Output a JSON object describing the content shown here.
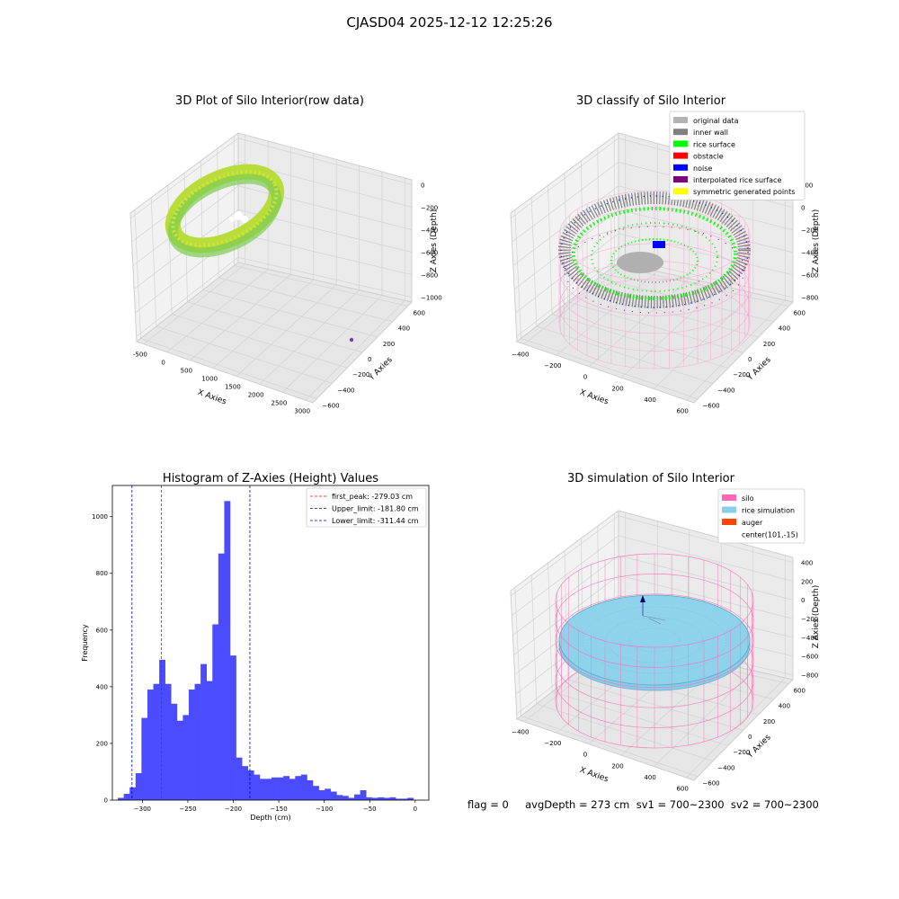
{
  "suptitle": "CJASD04 2025-12-12 12:25:26",
  "footer": "flag = 0     avgDepth = 273 cm  sv1 = 700~2300  sv2 = 700~2300",
  "colors": {
    "histogram_bar": "#4b4bff",
    "red_line": "#ff0000",
    "blue_line": "#0000cc",
    "original_data": "#b3b3b3",
    "inner_wall": "#808080",
    "rice_surface": "#00ff00",
    "obstacle": "#ff0000",
    "noise": "#0000ff",
    "interpolated_rice_surface": "#800080",
    "symmetric_generated_points": "#ffff00",
    "silo": "#ff69b4",
    "rice_simulation": "#87ceeb",
    "auger": "#ff4500"
  },
  "panels": {
    "raw": {
      "title": "3D Plot of Silo Interior(row data)",
      "xlabel": "X Axies",
      "ylabel": "Y Axies",
      "zlabel": "Z Axies (Depth)",
      "xticks": [
        "-500",
        "0",
        "500",
        "1000",
        "1500",
        "2000",
        "2500",
        "3000"
      ],
      "yticks": [
        "600",
        "400",
        "200",
        "0",
        "−200",
        "−400",
        "−600"
      ],
      "zticks": [
        "0",
        "−200",
        "−400",
        "−600",
        "−800",
        "−1000"
      ]
    },
    "classify": {
      "title": "3D classify of Silo Interior",
      "xlabel": "X Axies",
      "ylabel": "Y Axies",
      "zlabel": "Z Axies (Depth)",
      "xticks": [
        "−400",
        "−200",
        "0",
        "200",
        "400",
        "600"
      ],
      "yticks": [
        "600",
        "400",
        "200",
        "0",
        "−200",
        "−400",
        "−600"
      ],
      "zticks": [
        "200",
        "0",
        "−200",
        "−400",
        "−600",
        "−800"
      ],
      "legend": [
        "original data",
        "inner wall",
        "rice surface",
        "obstacle",
        "noise",
        "interpolated rice surface",
        "symmetric generated points"
      ]
    },
    "sim": {
      "title": "3D simulation of Silo Interior",
      "xlabel": "X Axies",
      "ylabel": "Y Axies",
      "zlabel": "Z Axies (Depth)",
      "xticks": [
        "−400",
        "−200",
        "0",
        "200",
        "400",
        "600"
      ],
      "yticks": [
        "600",
        "400",
        "200",
        "0",
        "−200",
        "−400",
        "−600"
      ],
      "zticks": [
        "400",
        "200",
        "0",
        "−200",
        "−400",
        "−600",
        "−800"
      ],
      "legend": [
        "silo",
        "rice simulation",
        "auger",
        "center(101,-15)"
      ]
    }
  },
  "chart_data": {
    "type": "bar",
    "title": "Histogram of Z-Axies (Height) Values",
    "xlabel": "Depth (cm)",
    "ylabel": "Frequency",
    "xlim": [
      -333,
      15
    ],
    "ylim": [
      0,
      1110
    ],
    "xticks": [
      -300,
      -250,
      -200,
      -150,
      -100,
      -50,
      0
    ],
    "yticks": [
      0,
      200,
      400,
      600,
      800,
      1000
    ],
    "bin_start": -327,
    "bin_width": 6.5,
    "values": [
      8,
      22,
      45,
      95,
      290,
      390,
      410,
      495,
      410,
      340,
      280,
      300,
      390,
      410,
      480,
      420,
      620,
      870,
      1055,
      510,
      150,
      120,
      105,
      90,
      75,
      75,
      80,
      80,
      85,
      75,
      85,
      90,
      70,
      50,
      35,
      40,
      30,
      18,
      15,
      8,
      20,
      35,
      10,
      8,
      10,
      8,
      10,
      5,
      5,
      8
    ],
    "vlines": [
      {
        "x": -279.03,
        "style": "red",
        "label": "first_peak: -279.03 cm"
      },
      {
        "x": -181.8,
        "style": "blue",
        "label": "Upper_limit: -181.80 cm"
      },
      {
        "x": -311.44,
        "style": "blue",
        "label": "Lower_limit: -311.44 cm"
      }
    ],
    "legend_position": "top-right"
  }
}
